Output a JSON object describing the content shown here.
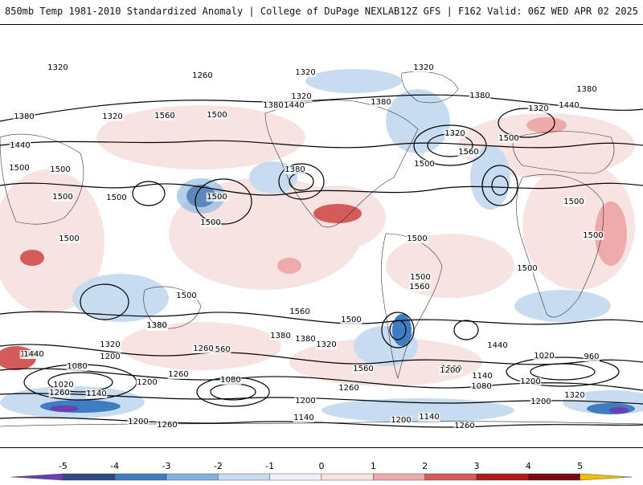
{
  "header": {
    "left_title": "850mb Temp 1981-2010 Standardized Anomaly | College of DuPage NEXLAB",
    "right_title": "12Z GFS | F162 Valid: 06Z WED APR 02 2025"
  },
  "colorbar": {
    "tick_labels": [
      "-5",
      "-4",
      "-3",
      "-2",
      "-1",
      "0",
      "1",
      "2",
      "3",
      "4",
      "5"
    ],
    "colors": [
      "#6a3fb0",
      "#2e4a86",
      "#3e7cc4",
      "#80b2de",
      "#c7dcf0",
      "#eef2f8",
      "#f8e3e3",
      "#eeaaaa",
      "#d55a5a",
      "#b01c1c",
      "#7a0b0b",
      "#f0c000"
    ]
  },
  "contour_labels": [
    {
      "text": "1320"
    },
    {
      "text": "1260"
    },
    {
      "text": "1320"
    },
    {
      "text": "1320"
    },
    {
      "text": "1320"
    },
    {
      "text": "1380"
    },
    {
      "text": "1320"
    },
    {
      "text": "1380"
    },
    {
      "text": "1440"
    },
    {
      "text": "1380"
    },
    {
      "text": "1380"
    },
    {
      "text": "1380"
    },
    {
      "text": "1320"
    },
    {
      "text": "1440"
    },
    {
      "text": "1500"
    },
    {
      "text": "1560"
    },
    {
      "text": "1440"
    },
    {
      "text": "1320"
    },
    {
      "text": "1500"
    },
    {
      "text": "1560"
    },
    {
      "text": "1380"
    },
    {
      "text": "1500"
    },
    {
      "text": "1500"
    },
    {
      "text": "1500"
    },
    {
      "text": "1500"
    },
    {
      "text": "1500"
    },
    {
      "text": "1500"
    },
    {
      "text": "1500"
    },
    {
      "text": "1500"
    },
    {
      "text": "1500"
    },
    {
      "text": "1500"
    },
    {
      "text": "1500"
    },
    {
      "text": "1500"
    },
    {
      "text": "1500"
    },
    {
      "text": "1560"
    },
    {
      "text": "1500"
    },
    {
      "text": "1560"
    },
    {
      "text": "1380"
    },
    {
      "text": "1500"
    },
    {
      "text": "1380"
    },
    {
      "text": "1560"
    },
    {
      "text": "1380"
    },
    {
      "text": "1320"
    },
    {
      "text": "1440"
    },
    {
      "text": "1560"
    },
    {
      "text": "1440"
    },
    {
      "text": "1200"
    },
    {
      "text": "1320"
    },
    {
      "text": "1200"
    },
    {
      "text": "1080"
    },
    {
      "text": "1260"
    },
    {
      "text": "1440"
    },
    {
      "text": "1020"
    },
    {
      "text": "1200"
    },
    {
      "text": "1140"
    },
    {
      "text": "1260"
    },
    {
      "text": "1080"
    },
    {
      "text": "1260"
    },
    {
      "text": "1140"
    },
    {
      "text": "1200"
    },
    {
      "text": "1080"
    },
    {
      "text": "1020"
    },
    {
      "text": "960"
    },
    {
      "text": "1200"
    },
    {
      "text": "1320"
    },
    {
      "text": "1260"
    },
    {
      "text": "1200"
    },
    {
      "text": "1200"
    },
    {
      "text": "1260"
    },
    {
      "text": "1200"
    },
    {
      "text": "1140"
    },
    {
      "text": "1200"
    },
    {
      "text": "1140"
    },
    {
      "text": "1260"
    },
    {
      "text": "1380"
    }
  ]
}
